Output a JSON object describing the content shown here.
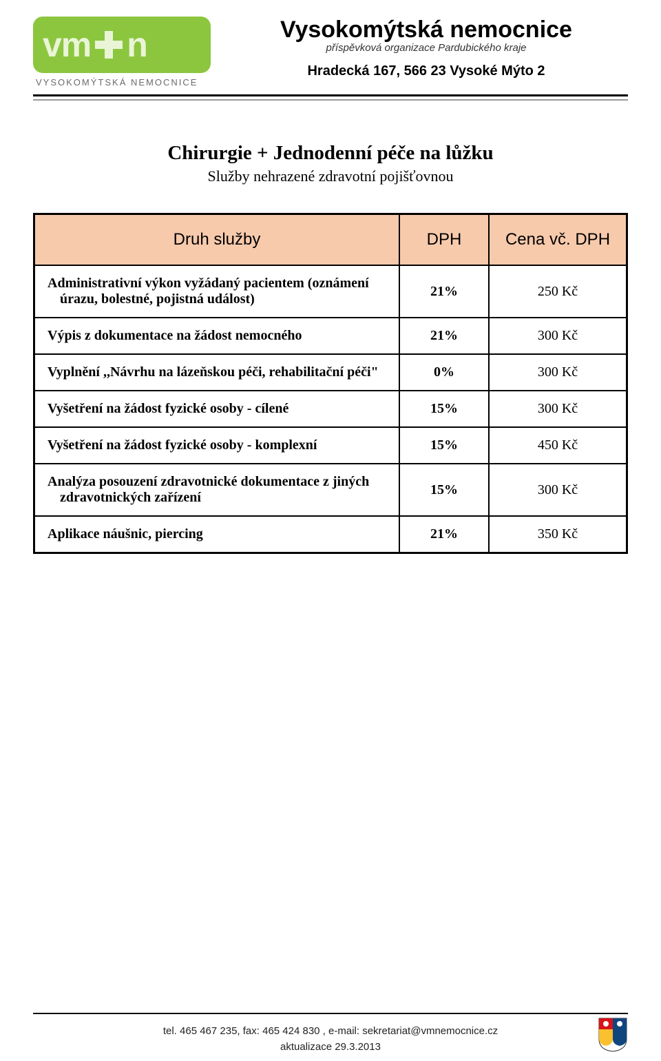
{
  "logo": {
    "text_left": "vm",
    "text_right": "n",
    "subtext": "VYSOKOMÝTSKÁ NEMOCNICE",
    "bg_color": "#8cc63f",
    "fg_color": "#e9f5d6"
  },
  "org": {
    "name": "Vysokomýtská nemocnice",
    "sub": "příspěvková organizace Pardubického kraje",
    "address": "Hradecká 167, 566 23 Vysoké Mýto 2"
  },
  "doc": {
    "title": "Chirurgie + Jednodenní péče na lůžku",
    "subtitle": "Služby nehrazené zdravotní pojišťovnou"
  },
  "table": {
    "header_bg": "#f7caac",
    "columns": [
      "Druh služby",
      "DPH",
      "Cena vč. DPH"
    ],
    "rows": [
      {
        "svc": "Administrativní výkon vyžádaný pacientem (oznámení úrazu, bolestné, pojistná událost)",
        "dph": "21%",
        "price": "250 Kč"
      },
      {
        "svc": "Výpis z dokumentace na žádost nemocného",
        "dph": "21%",
        "price": "300 Kč"
      },
      {
        "svc": "Vyplnění ,,Návrhu na lázeňskou péči, rehabilitační péči\"",
        "dph": "0%",
        "price": "300 Kč"
      },
      {
        "svc": "Vyšetření na žádost fyzické osoby - cílené",
        "dph": "15%",
        "price": "300 Kč"
      },
      {
        "svc": "Vyšetření na žádost fyzické osoby - komplexní",
        "dph": "15%",
        "price": "450 Kč"
      },
      {
        "svc": "Analýza posouzení zdravotnické dokumentace z jiných zdravotnických zařízení",
        "dph": "15%",
        "price": "300 Kč"
      },
      {
        "svc": "Aplikace náušnic, piercing",
        "dph": "21%",
        "price": "350 Kč"
      }
    ]
  },
  "footer": {
    "contact": "tel. 465 467 235, fax: 465 424 830 , e-mail: sekretariat@vmnemocnice.cz",
    "date": "aktualizace 29.3.2013"
  }
}
